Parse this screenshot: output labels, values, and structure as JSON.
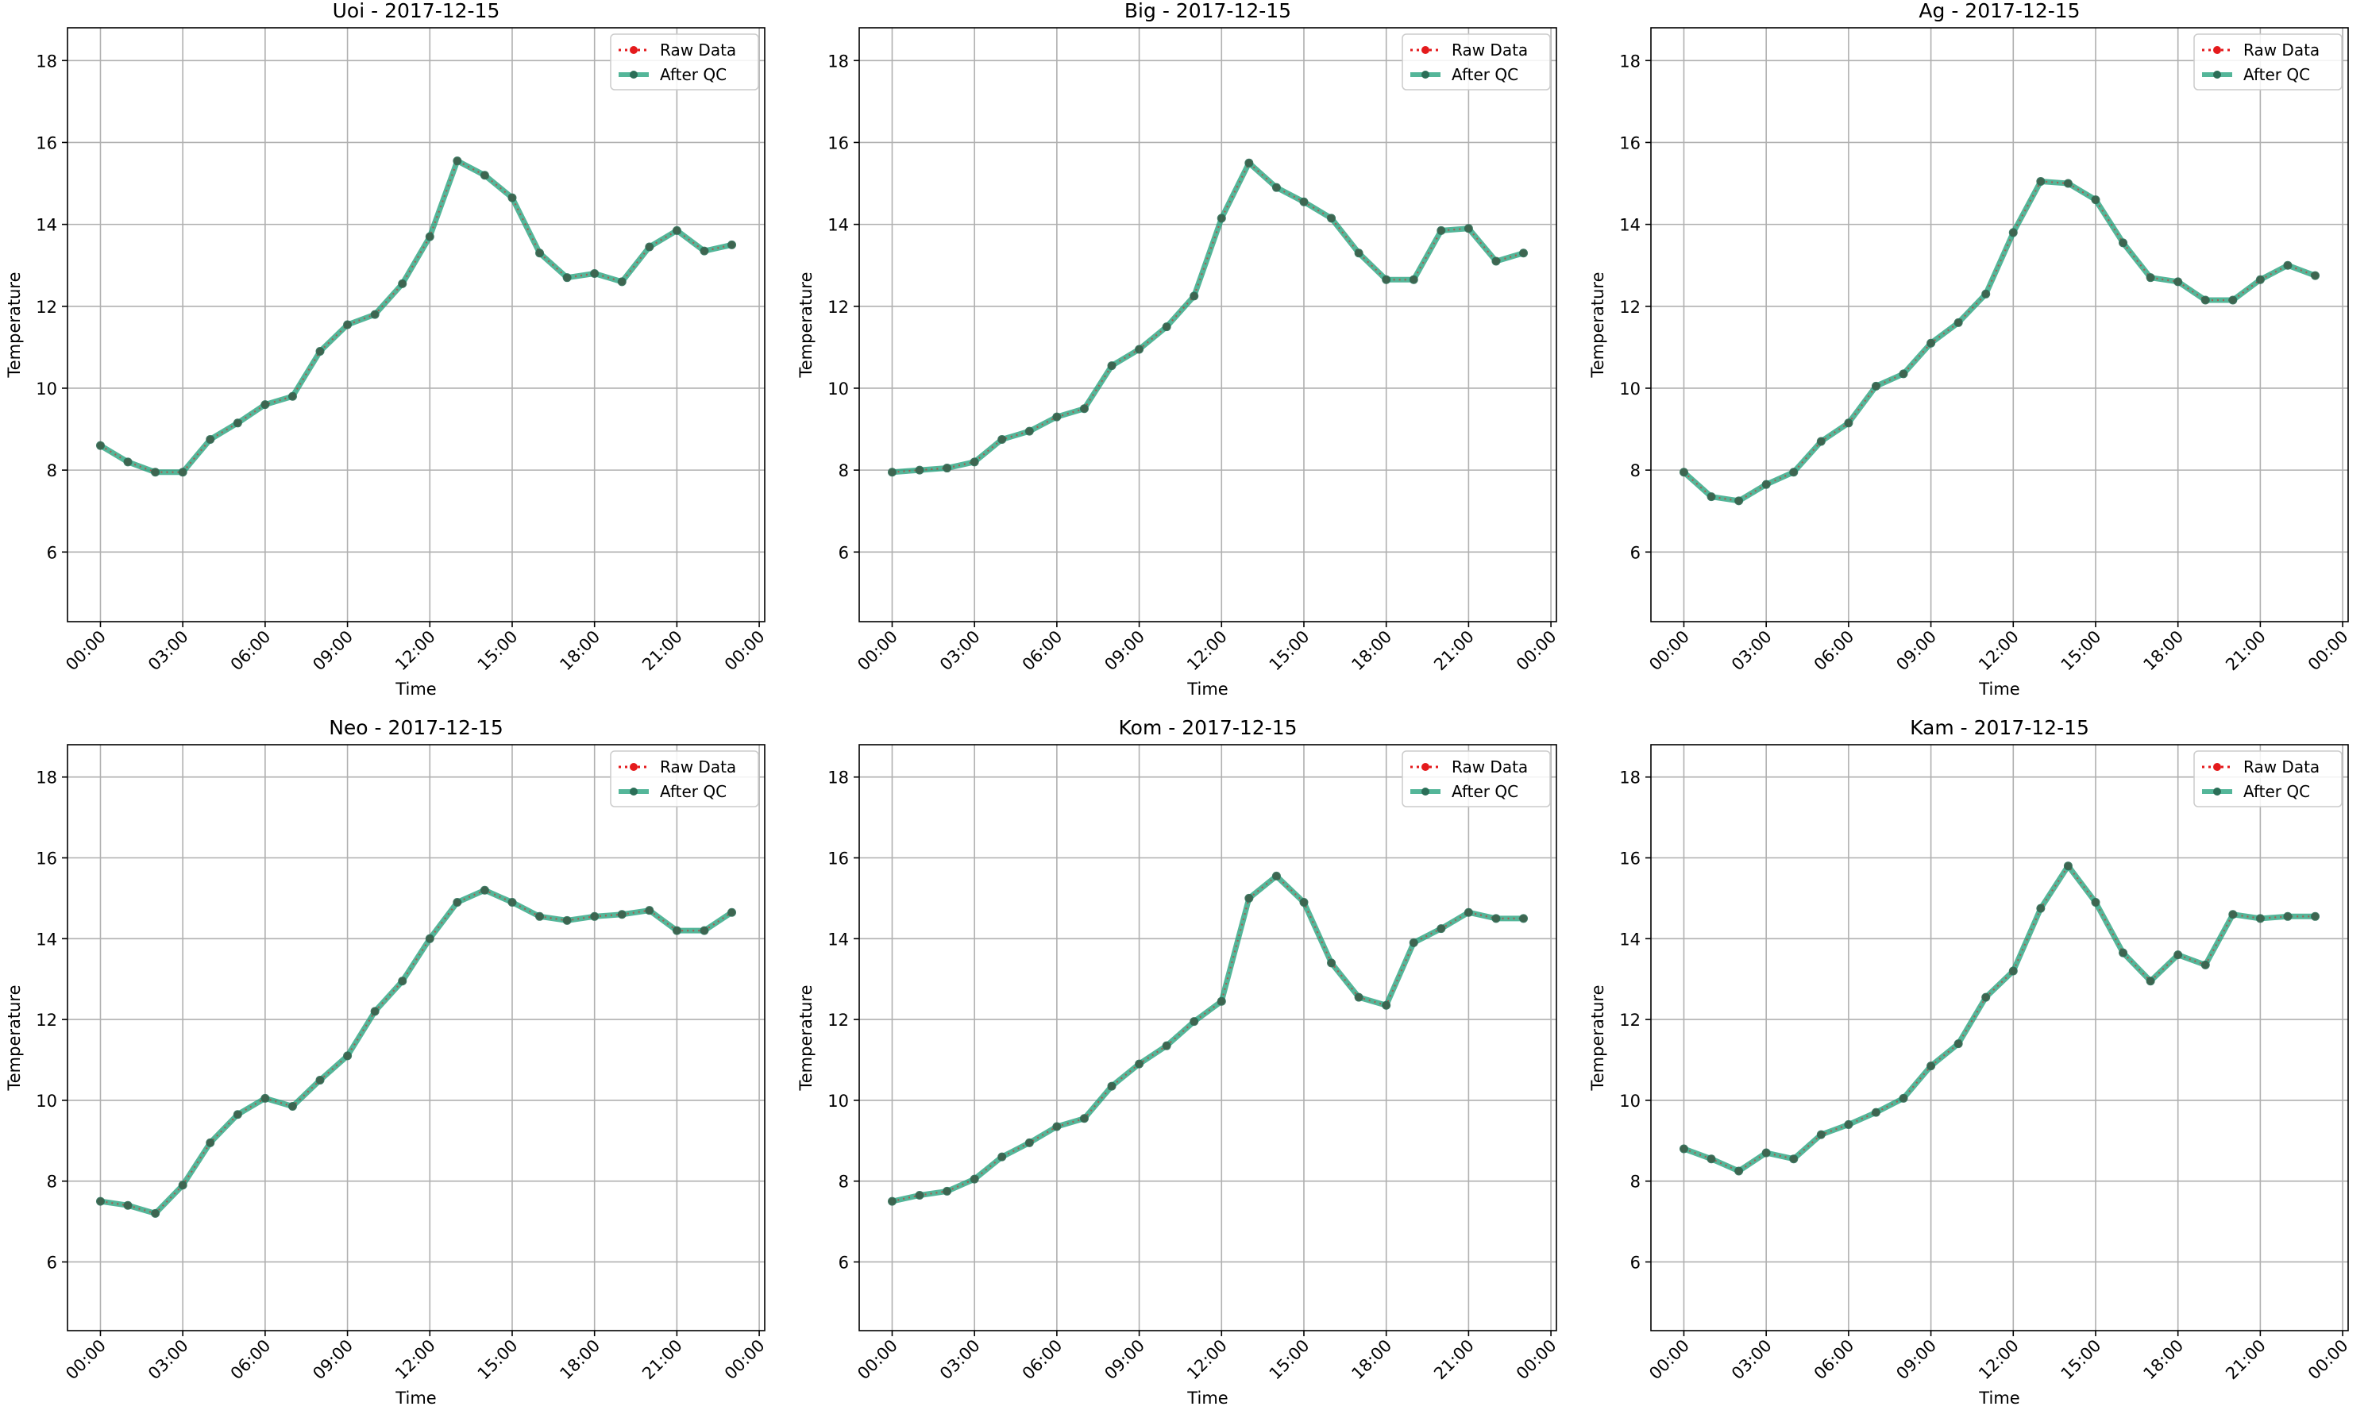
{
  "figure": {
    "colors": {
      "raw": "#e41a1c",
      "qc": "#1b9e77",
      "grid": "#b0b0b0",
      "axes": "#000000"
    },
    "legend": {
      "raw_label": "Raw Data",
      "qc_label": "After QC",
      "placement": "top-right"
    }
  },
  "chart_data": [
    {
      "type": "line",
      "title": "Uoi - 2017-12-15",
      "xlabel": "Time",
      "ylabel": "Temperature",
      "x_tick_labels": [
        "00:00",
        "03:00",
        "06:00",
        "09:00",
        "12:00",
        "15:00",
        "18:00",
        "21:00",
        "00:00"
      ],
      "x_tick_hours": [
        0,
        3,
        6,
        9,
        12,
        15,
        18,
        21,
        24
      ],
      "y_ticks": [
        6,
        8,
        10,
        12,
        14,
        16,
        18
      ],
      "xlim_hours": [
        -1.2,
        24.2
      ],
      "ylim": [
        4.3,
        18.8
      ],
      "grid": true,
      "x_hours": [
        0,
        1,
        2,
        3,
        4,
        5,
        6,
        7,
        8,
        9,
        10,
        11,
        12,
        13,
        14,
        15,
        16,
        17,
        18,
        19,
        20,
        21,
        22,
        23
      ],
      "series": [
        {
          "name": "Raw Data",
          "values": [
            8.6,
            8.2,
            7.95,
            7.95,
            8.75,
            9.15,
            9.6,
            9.8,
            10.9,
            11.55,
            11.8,
            12.55,
            13.7,
            15.55,
            15.2,
            14.65,
            13.3,
            12.7,
            12.8,
            12.6,
            13.45,
            13.85,
            13.35,
            13.5
          ]
        },
        {
          "name": "After QC",
          "values": [
            8.6,
            8.2,
            7.95,
            7.95,
            8.75,
            9.15,
            9.6,
            9.8,
            10.9,
            11.55,
            11.8,
            12.55,
            13.7,
            15.55,
            15.2,
            14.65,
            13.3,
            12.7,
            12.8,
            12.6,
            13.45,
            13.85,
            13.35,
            13.5
          ]
        }
      ]
    },
    {
      "type": "line",
      "title": "Big - 2017-12-15",
      "xlabel": "Time",
      "ylabel": "Temperature",
      "x_tick_labels": [
        "00:00",
        "03:00",
        "06:00",
        "09:00",
        "12:00",
        "15:00",
        "18:00",
        "21:00",
        "00:00"
      ],
      "x_tick_hours": [
        0,
        3,
        6,
        9,
        12,
        15,
        18,
        21,
        24
      ],
      "y_ticks": [
        6,
        8,
        10,
        12,
        14,
        16,
        18
      ],
      "xlim_hours": [
        -1.2,
        24.2
      ],
      "ylim": [
        4.3,
        18.8
      ],
      "grid": true,
      "x_hours": [
        0,
        1,
        2,
        3,
        4,
        5,
        6,
        7,
        8,
        9,
        10,
        11,
        12,
        13,
        14,
        15,
        16,
        17,
        18,
        19,
        20,
        21,
        22,
        23
      ],
      "series": [
        {
          "name": "Raw Data",
          "values": [
            7.95,
            8.0,
            8.05,
            8.2,
            8.75,
            8.95,
            9.3,
            9.5,
            10.55,
            10.95,
            11.5,
            12.25,
            14.15,
            15.5,
            14.9,
            14.55,
            14.15,
            13.3,
            12.65,
            12.65,
            13.85,
            13.9,
            13.1,
            13.3
          ]
        },
        {
          "name": "After QC",
          "values": [
            7.95,
            8.0,
            8.05,
            8.2,
            8.75,
            8.95,
            9.3,
            9.5,
            10.55,
            10.95,
            11.5,
            12.25,
            14.15,
            15.5,
            14.9,
            14.55,
            14.15,
            13.3,
            12.65,
            12.65,
            13.85,
            13.9,
            13.1,
            13.3
          ]
        }
      ]
    },
    {
      "type": "line",
      "title": "Ag - 2017-12-15",
      "xlabel": "Time",
      "ylabel": "Temperature",
      "x_tick_labels": [
        "00:00",
        "03:00",
        "06:00",
        "09:00",
        "12:00",
        "15:00",
        "18:00",
        "21:00",
        "00:00"
      ],
      "x_tick_hours": [
        0,
        3,
        6,
        9,
        12,
        15,
        18,
        21,
        24
      ],
      "y_ticks": [
        6,
        8,
        10,
        12,
        14,
        16,
        18
      ],
      "xlim_hours": [
        -1.2,
        24.2
      ],
      "ylim": [
        4.3,
        18.8
      ],
      "grid": true,
      "x_hours": [
        0,
        1,
        2,
        3,
        4,
        5,
        6,
        7,
        8,
        9,
        10,
        11,
        12,
        13,
        14,
        15,
        16,
        17,
        18,
        19,
        20,
        21,
        22,
        23
      ],
      "series": [
        {
          "name": "Raw Data",
          "values": [
            7.95,
            7.35,
            7.25,
            7.65,
            7.95,
            8.7,
            9.15,
            10.05,
            10.35,
            11.1,
            11.6,
            12.3,
            13.8,
            15.05,
            15.0,
            14.6,
            13.55,
            12.7,
            12.6,
            12.15,
            12.15,
            12.65,
            13.0,
            12.75
          ]
        },
        {
          "name": "After QC",
          "values": [
            7.95,
            7.35,
            7.25,
            7.65,
            7.95,
            8.7,
            9.15,
            10.05,
            10.35,
            11.1,
            11.6,
            12.3,
            13.8,
            15.05,
            15.0,
            14.6,
            13.55,
            12.7,
            12.6,
            12.15,
            12.15,
            12.65,
            13.0,
            12.75
          ]
        }
      ]
    },
    {
      "type": "line",
      "title": "Neo - 2017-12-15",
      "xlabel": "Time",
      "ylabel": "Temperature",
      "x_tick_labels": [
        "00:00",
        "03:00",
        "06:00",
        "09:00",
        "12:00",
        "15:00",
        "18:00",
        "21:00",
        "00:00"
      ],
      "x_tick_hours": [
        0,
        3,
        6,
        9,
        12,
        15,
        18,
        21,
        24
      ],
      "y_ticks": [
        6,
        8,
        10,
        12,
        14,
        16,
        18
      ],
      "xlim_hours": [
        -1.2,
        24.2
      ],
      "ylim": [
        4.3,
        18.8
      ],
      "grid": true,
      "x_hours": [
        0,
        1,
        2,
        3,
        4,
        5,
        6,
        7,
        8,
        9,
        10,
        11,
        12,
        13,
        14,
        15,
        16,
        17,
        18,
        19,
        20,
        21,
        22,
        23
      ],
      "series": [
        {
          "name": "Raw Data",
          "values": [
            7.5,
            7.4,
            7.2,
            7.9,
            8.95,
            9.65,
            10.05,
            9.85,
            10.5,
            11.1,
            12.2,
            12.95,
            14.0,
            14.9,
            15.2,
            14.9,
            14.55,
            14.45,
            14.55,
            14.6,
            14.7,
            14.2,
            14.2,
            14.65
          ]
        },
        {
          "name": "After QC",
          "values": [
            7.5,
            7.4,
            7.2,
            7.9,
            8.95,
            9.65,
            10.05,
            9.85,
            10.5,
            11.1,
            12.2,
            12.95,
            14.0,
            14.9,
            15.2,
            14.9,
            14.55,
            14.45,
            14.55,
            14.6,
            14.7,
            14.2,
            14.2,
            14.65
          ]
        }
      ]
    },
    {
      "type": "line",
      "title": "Kom - 2017-12-15",
      "xlabel": "Time",
      "ylabel": "Temperature",
      "x_tick_labels": [
        "00:00",
        "03:00",
        "06:00",
        "09:00",
        "12:00",
        "15:00",
        "18:00",
        "21:00",
        "00:00"
      ],
      "x_tick_hours": [
        0,
        3,
        6,
        9,
        12,
        15,
        18,
        21,
        24
      ],
      "y_ticks": [
        6,
        8,
        10,
        12,
        14,
        16,
        18
      ],
      "xlim_hours": [
        -1.2,
        24.2
      ],
      "ylim": [
        4.3,
        18.8
      ],
      "grid": true,
      "x_hours": [
        0,
        1,
        2,
        3,
        4,
        5,
        6,
        7,
        8,
        9,
        10,
        11,
        12,
        13,
        14,
        15,
        16,
        17,
        18,
        19,
        20,
        21,
        22,
        23
      ],
      "series": [
        {
          "name": "Raw Data",
          "values": [
            7.5,
            7.65,
            7.75,
            8.05,
            8.6,
            8.95,
            9.35,
            9.55,
            10.35,
            10.9,
            11.35,
            11.95,
            12.45,
            15.0,
            15.55,
            14.9,
            13.4,
            12.55,
            12.35,
            13.9,
            14.25,
            14.65,
            14.5,
            14.5
          ]
        },
        {
          "name": "After QC",
          "values": [
            7.5,
            7.65,
            7.75,
            8.05,
            8.6,
            8.95,
            9.35,
            9.55,
            10.35,
            10.9,
            11.35,
            11.95,
            12.45,
            15.0,
            15.55,
            14.9,
            13.4,
            12.55,
            12.35,
            13.9,
            14.25,
            14.65,
            14.5,
            14.5
          ]
        }
      ]
    },
    {
      "type": "line",
      "title": "Kam - 2017-12-15",
      "xlabel": "Time",
      "ylabel": "Temperature",
      "x_tick_labels": [
        "00:00",
        "03:00",
        "06:00",
        "09:00",
        "12:00",
        "15:00",
        "18:00",
        "21:00",
        "00:00"
      ],
      "x_tick_hours": [
        0,
        3,
        6,
        9,
        12,
        15,
        18,
        21,
        24
      ],
      "y_ticks": [
        6,
        8,
        10,
        12,
        14,
        16,
        18
      ],
      "xlim_hours": [
        -1.2,
        24.2
      ],
      "ylim": [
        4.3,
        18.8
      ],
      "grid": true,
      "x_hours": [
        0,
        1,
        2,
        3,
        4,
        5,
        6,
        7,
        8,
        9,
        10,
        11,
        12,
        13,
        14,
        15,
        16,
        17,
        18,
        19,
        20,
        21,
        22,
        23
      ],
      "series": [
        {
          "name": "Raw Data",
          "values": [
            8.8,
            8.55,
            8.25,
            8.7,
            8.55,
            9.15,
            9.4,
            9.7,
            10.05,
            10.85,
            11.4,
            12.55,
            13.2,
            14.75,
            15.8,
            14.9,
            13.65,
            12.95,
            13.6,
            13.35,
            14.6,
            14.5,
            14.55,
            14.55
          ]
        },
        {
          "name": "After QC",
          "values": [
            8.8,
            8.55,
            8.25,
            8.7,
            8.55,
            9.15,
            9.4,
            9.7,
            10.05,
            10.85,
            11.4,
            12.55,
            13.2,
            14.75,
            15.8,
            14.9,
            13.65,
            12.95,
            13.6,
            13.35,
            14.6,
            14.5,
            14.55,
            14.55
          ]
        }
      ]
    }
  ]
}
